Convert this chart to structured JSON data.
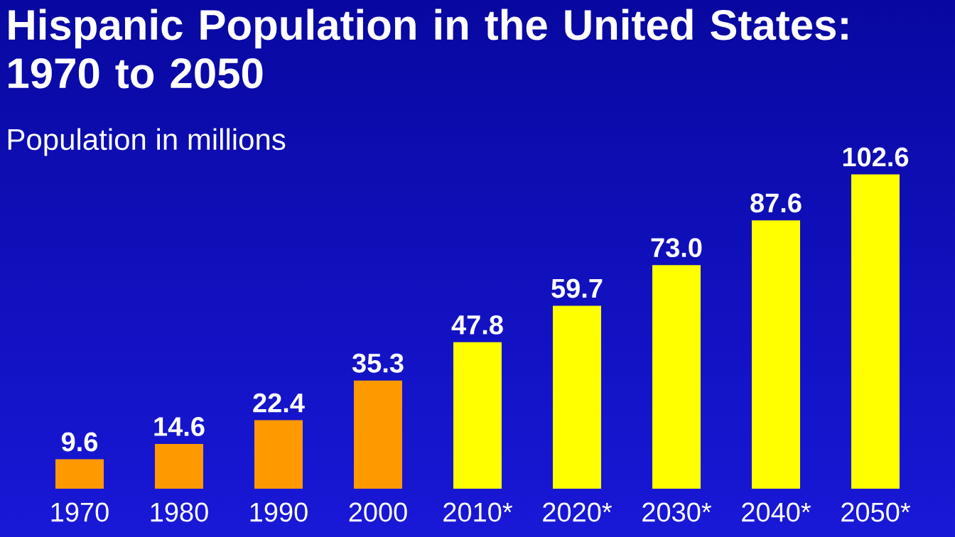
{
  "chart_data": {
    "type": "bar",
    "title": "Hispanic Population in the United States: 1970 to 2050",
    "subtitle": "Population in millions",
    "categories": [
      "1970",
      "1980",
      "1990",
      "2000",
      "2010*",
      "2020*",
      "2030*",
      "2040*",
      "2050*"
    ],
    "values": [
      9.6,
      14.6,
      22.4,
      35.3,
      47.8,
      59.7,
      73.0,
      87.6,
      102.6
    ],
    "colors": [
      "#ff9900",
      "#ff9900",
      "#ff9900",
      "#ff9900",
      "#ffff00",
      "#ffff00",
      "#ffff00",
      "#ffff00",
      "#ffff00"
    ],
    "value_labels": [
      "9.6",
      "14.6",
      "22.4",
      "35.3",
      "47.8",
      "59.7",
      "73.0",
      "87.6",
      "102.6"
    ]
  }
}
